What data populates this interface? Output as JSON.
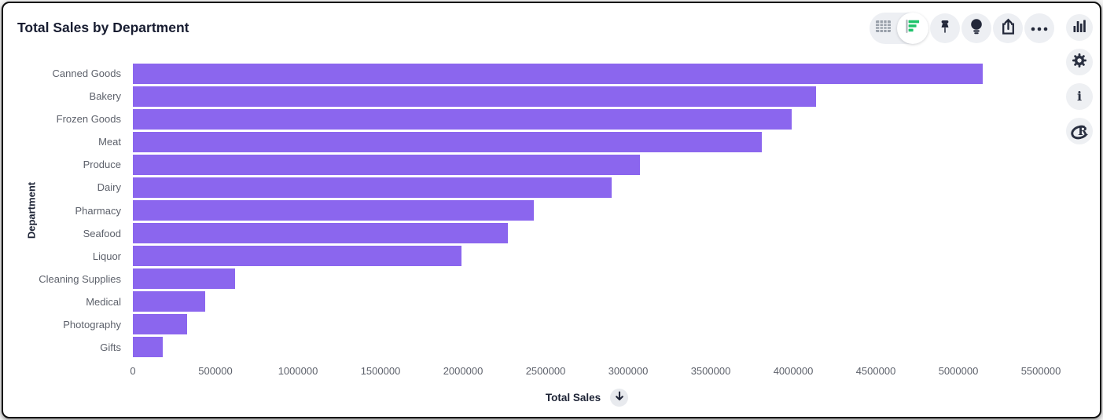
{
  "header": {
    "title": "Total Sales by Department"
  },
  "toolbar": {
    "view_toggle": {
      "options": [
        {
          "icon": "table-view-icon",
          "selected": false
        },
        {
          "icon": "bar-chart-view-icon",
          "selected": true
        }
      ]
    },
    "icons": [
      "pin-icon",
      "lightbulb-icon",
      "share-icon",
      "ellipsis-icon"
    ]
  },
  "side_panel": {
    "icons": [
      "column-chart-icon",
      "gear-icon",
      "info-icon",
      "r-logo-icon"
    ]
  },
  "x_axis_controls": {
    "sort_icon": "down-arrow-icon"
  },
  "chart_data": {
    "type": "bar",
    "orientation": "horizontal",
    "title": "Total Sales by Department",
    "xlabel": "Total Sales",
    "ylabel": "Department",
    "categories": [
      "Canned Goods",
      "Bakery",
      "Frozen Goods",
      "Meat",
      "Produce",
      "Dairy",
      "Pharmacy",
      "Seafood",
      "Liquor",
      "Cleaning Supplies",
      "Medical",
      "Photography",
      "Gifts"
    ],
    "values": [
      5150000,
      4140000,
      3990000,
      3810000,
      3070000,
      2900000,
      2430000,
      2270000,
      1990000,
      620000,
      440000,
      330000,
      180000
    ],
    "xlim": [
      0,
      5500000
    ],
    "xticks": [
      0,
      500000,
      1000000,
      1500000,
      2000000,
      2500000,
      3000000,
      3500000,
      4000000,
      4500000,
      5000000,
      5500000
    ],
    "sort": "descending",
    "grid": false,
    "legend": false,
    "bar_color": "#8b66ee"
  },
  "colors": {
    "bar_purple": "#8b66ee",
    "accent_green": "#1fc36a",
    "icon_dark": "#23283a",
    "icon_circle_bg": "#edeff3",
    "title_text": "#181d31",
    "axis_text": "#5d616b"
  }
}
